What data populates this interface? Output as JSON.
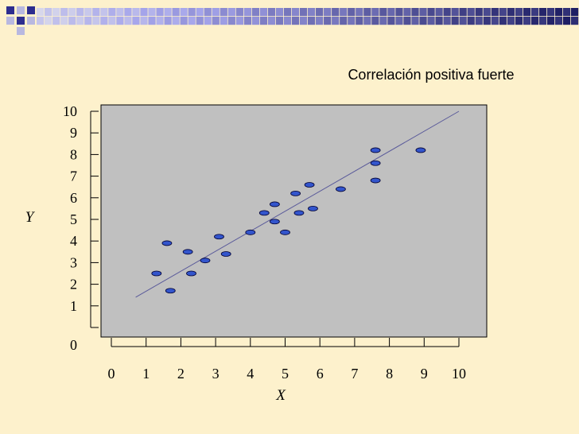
{
  "colors": {
    "background": "#fdf1cc",
    "plot_area": "#c0c0c0",
    "point_fill": "#3355cc",
    "point_stroke": "#000033",
    "trend_line": "#5a5a9a",
    "banner_dark": "#2d2d8f",
    "banner_light": "#b8b8e0"
  },
  "chart_data": {
    "type": "scatter",
    "title": "Correlación positiva fuerte",
    "xlabel": "X",
    "ylabel": "Y",
    "xlim": [
      0,
      10.5
    ],
    "ylim": [
      0,
      10
    ],
    "x_ticks": [
      "0",
      "1",
      "2",
      "3",
      "4",
      "5",
      "6",
      "7",
      "8",
      "9",
      "10"
    ],
    "y_ticks": [
      "0",
      "1",
      "2",
      "3",
      "4",
      "5",
      "6",
      "7",
      "8",
      "9",
      "10"
    ],
    "grid": false,
    "points": [
      {
        "x": 1.3,
        "y": 2.5
      },
      {
        "x": 1.6,
        "y": 3.9
      },
      {
        "x": 1.7,
        "y": 1.7
      },
      {
        "x": 2.2,
        "y": 3.5
      },
      {
        "x": 2.3,
        "y": 2.5
      },
      {
        "x": 2.7,
        "y": 3.1
      },
      {
        "x": 3.1,
        "y": 4.2
      },
      {
        "x": 3.3,
        "y": 3.4
      },
      {
        "x": 4.0,
        "y": 4.4
      },
      {
        "x": 4.4,
        "y": 5.3
      },
      {
        "x": 4.7,
        "y": 4.9
      },
      {
        "x": 4.7,
        "y": 5.7
      },
      {
        "x": 5.0,
        "y": 4.4
      },
      {
        "x": 5.3,
        "y": 6.2
      },
      {
        "x": 5.4,
        "y": 5.3
      },
      {
        "x": 5.7,
        "y": 6.6
      },
      {
        "x": 5.8,
        "y": 5.5
      },
      {
        "x": 6.6,
        "y": 6.4
      },
      {
        "x": 7.6,
        "y": 6.8
      },
      {
        "x": 7.6,
        "y": 7.6
      },
      {
        "x": 7.6,
        "y": 8.2
      },
      {
        "x": 8.9,
        "y": 8.2
      }
    ],
    "trend_line": {
      "x1": 0.7,
      "y1": 1.4,
      "x2": 10.0,
      "y2": 10.0
    }
  }
}
